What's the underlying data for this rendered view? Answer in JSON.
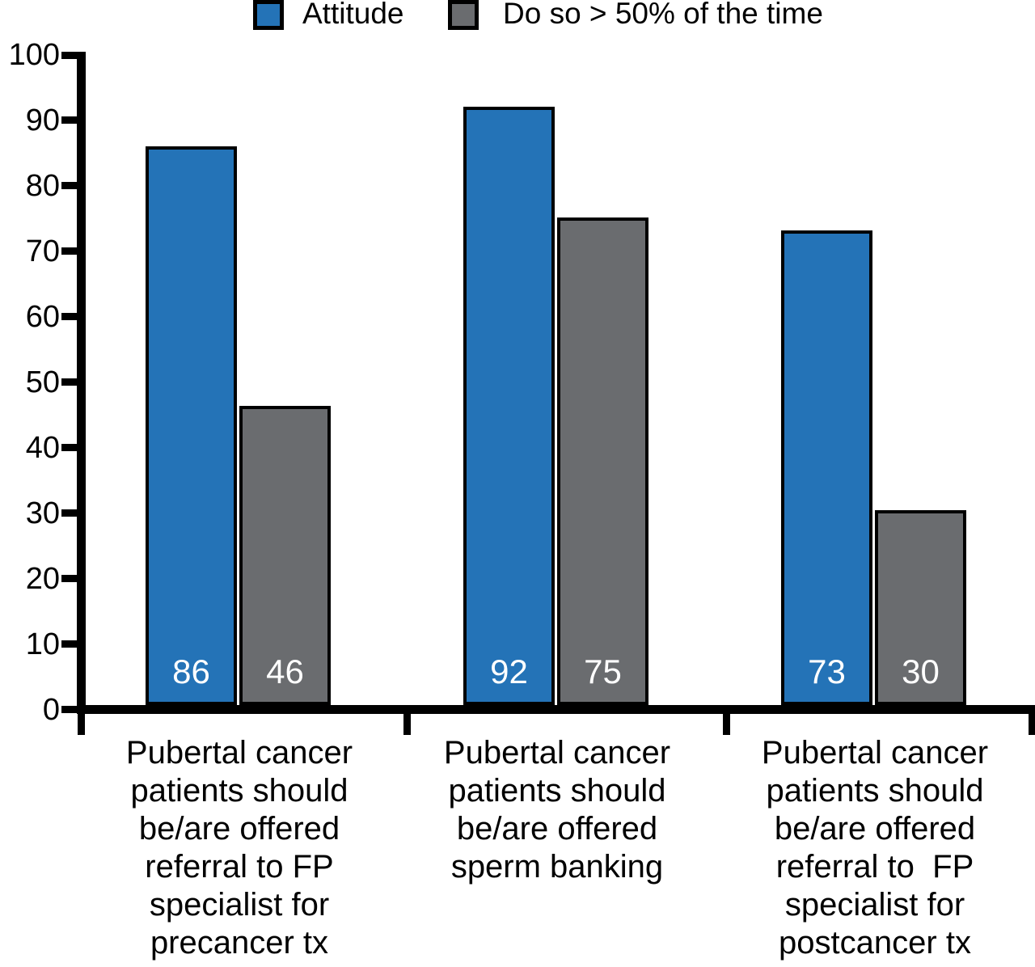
{
  "figure": {
    "background": "#ffffff",
    "axis_color": "#000000",
    "bar_border_color": "#000000",
    "value_label_color": "#ffffff"
  },
  "legend": {
    "position": "top",
    "items": [
      {
        "label": "Attitude",
        "color": "#2473b7"
      },
      {
        "label": "Do so > 50% of the time",
        "color": "#6a6c6f"
      }
    ]
  },
  "chart_data": {
    "type": "bar",
    "title": "",
    "xlabel": "",
    "ylabel": "",
    "ylim": [
      0,
      100
    ],
    "yticks": [
      0,
      10,
      20,
      30,
      40,
      50,
      60,
      70,
      80,
      90,
      100
    ],
    "grid": false,
    "legend_position": "top",
    "value_labels": "inside bar bottom, white",
    "categories": [
      "Pubertal cancer\npatients should\nbe/are offered\nreferral to FP\nspecialist for\nprecancer tx",
      "Pubertal cancer\npatients should\nbe/are offered\nsperm banking",
      "Pubertal cancer\npatients should\nbe/are offered\nreferral to  FP\nspecialist for\npostcancer tx"
    ],
    "series": [
      {
        "name": "Attitude",
        "color": "#2473b7",
        "values": [
          86,
          92,
          73
        ]
      },
      {
        "name": "Do so > 50% of the time",
        "color": "#6a6c6f",
        "values": [
          46,
          75,
          30
        ]
      }
    ]
  }
}
